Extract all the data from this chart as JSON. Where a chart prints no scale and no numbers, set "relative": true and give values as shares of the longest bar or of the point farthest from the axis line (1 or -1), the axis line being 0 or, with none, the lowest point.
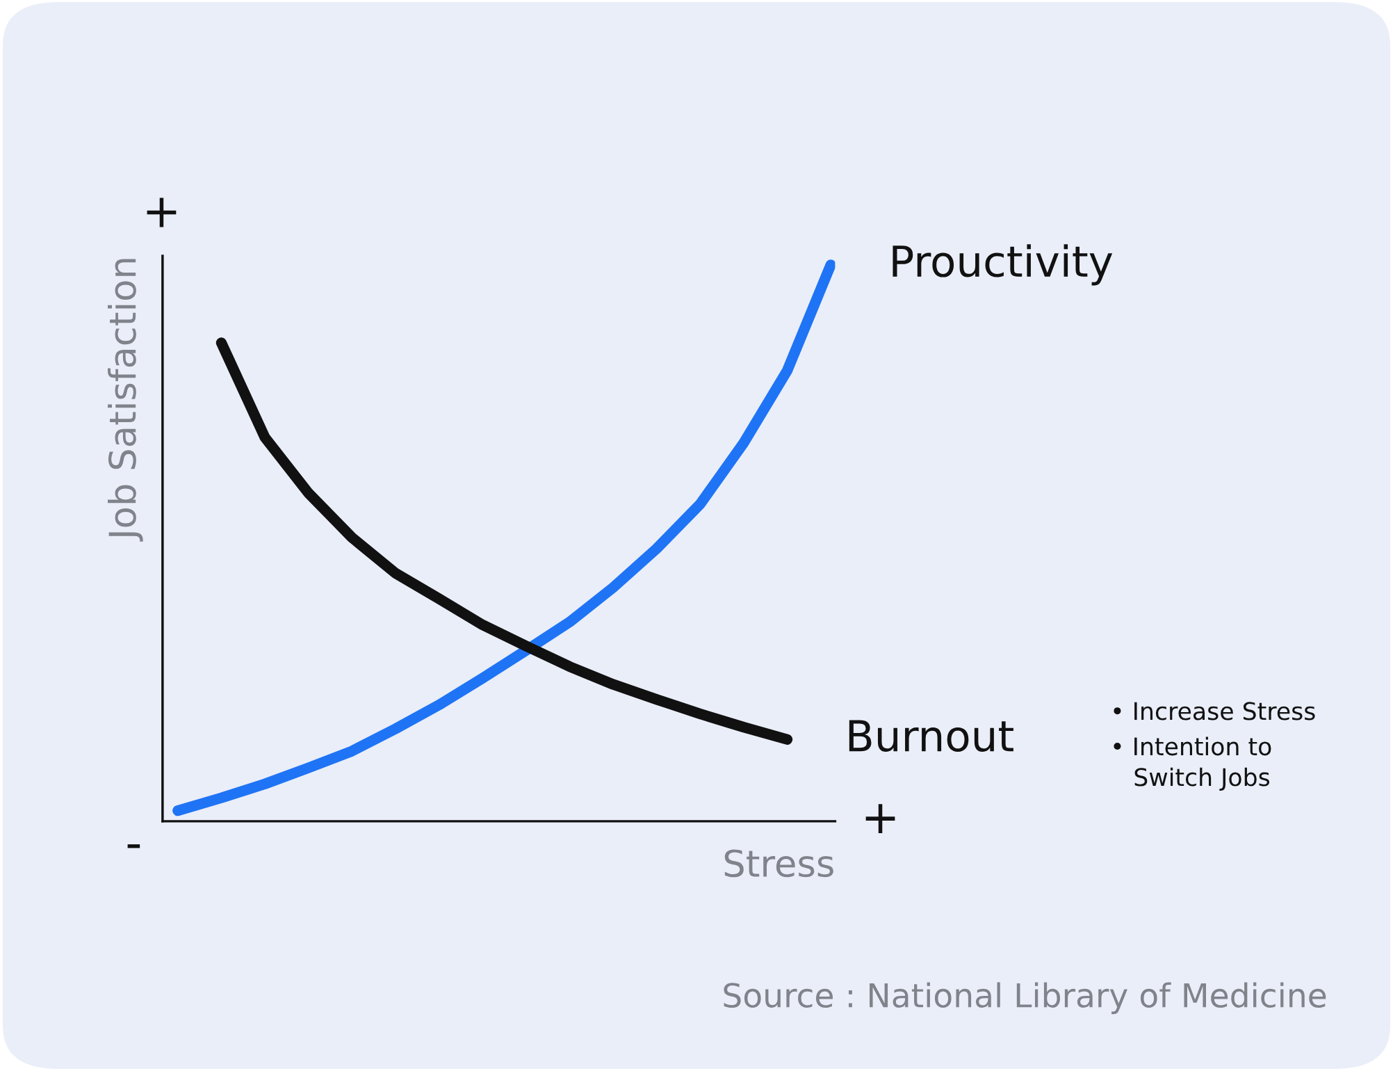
{
  "chart_data": {
    "type": "line",
    "relative": true,
    "xlabel": "Stress",
    "ylabel": "Job Satisfaction",
    "categories": [
      null,
      null,
      null,
      null,
      null,
      null,
      null,
      null,
      null,
      null,
      null,
      null,
      null,
      null,
      null,
      null
    ],
    "series": [
      {
        "name": "Prouctivity",
        "color": "#1f74f5",
        "values": [
          0.019,
          0.042,
          0.067,
          0.096,
          0.126,
          0.166,
          0.209,
          0.257,
          0.307,
          0.358,
          0.42,
          0.49,
          0.57,
          0.68,
          0.81,
          1.0
        ]
      },
      {
        "name": "Burnout",
        "color": "#111111",
        "values": [
          null,
          0.86,
          0.69,
          0.59,
          0.51,
          0.446,
          0.4,
          0.353,
          0.315,
          0.278,
          0.246,
          0.219,
          0.193,
          0.169,
          0.147,
          null
        ]
      }
    ],
    "annotations": [
      "+",
      "+",
      "-",
      "• Increase Stress",
      "• Intention to\n   Switch Jobs",
      "Source : National Library of Medicine"
    ],
    "grid": false,
    "legend": false,
    "line_style": "solid"
  }
}
